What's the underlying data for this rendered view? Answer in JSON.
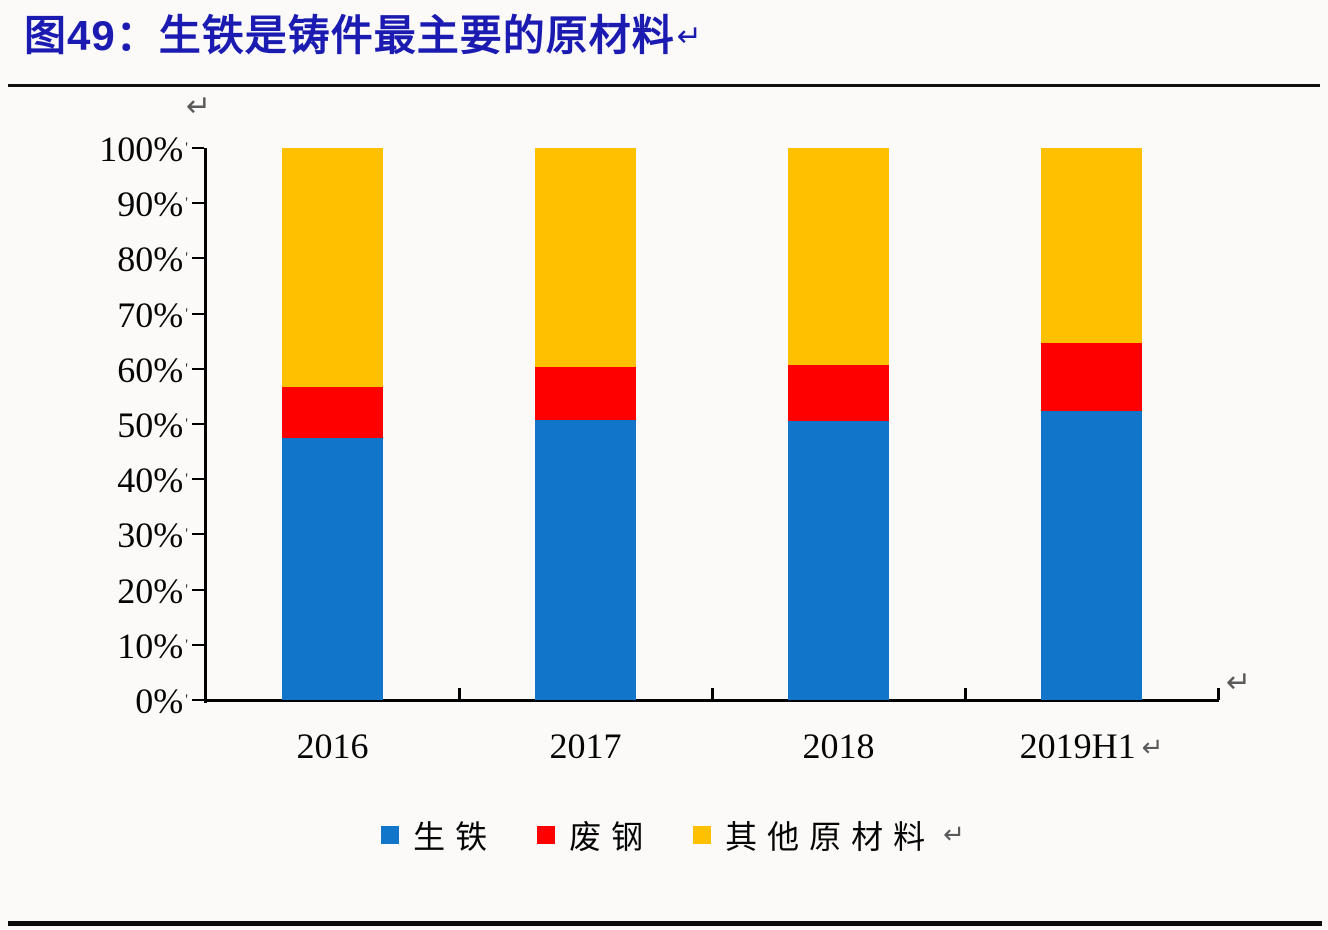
{
  "marks": {
    "return": "↵",
    "tick_suffix": "'"
  },
  "figure": {
    "title": "图49：生铁是铸件最主要的原材料",
    "title_color": "#1B1BB2"
  },
  "chart_data": {
    "type": "bar",
    "subtype": "stacked-100-percent",
    "title": "图49：生铁是铸件最主要的原材料",
    "categories": [
      "2016",
      "2017",
      "2018",
      "2019H1"
    ],
    "series": [
      {
        "name": "生铁",
        "color": "#1175CA",
        "values": [
          47.5,
          50.8,
          50.5,
          52.4
        ]
      },
      {
        "name": "废钢",
        "color": "#FE0000",
        "values": [
          9.2,
          9.6,
          10.2,
          12.3
        ]
      },
      {
        "name": "其他原材料",
        "color": "#FFC000",
        "values": [
          43.3,
          39.6,
          39.3,
          35.3
        ]
      }
    ],
    "y_axis": {
      "min": 0,
      "max": 100,
      "step": 10,
      "labels": [
        "0%",
        "10%",
        "20%",
        "30%",
        "40%",
        "50%",
        "60%",
        "70%",
        "80%",
        "90%",
        "100%"
      ]
    },
    "x_axis": {
      "labels": [
        "2016",
        "2017",
        "2018",
        "2019H1"
      ]
    },
    "legend_position": "bottom",
    "grid": false
  }
}
